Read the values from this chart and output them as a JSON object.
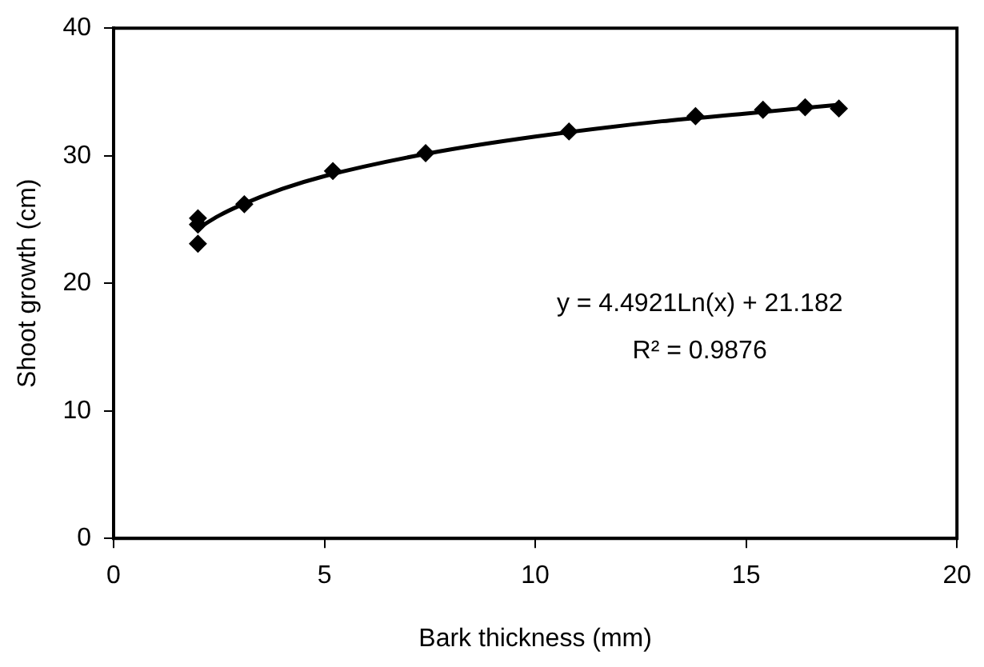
{
  "chart_data": {
    "type": "scatter",
    "xlabel": "Bark thickness (mm)",
    "ylabel": "Shoot growth (cm)",
    "xlim": [
      0,
      20
    ],
    "xticks": [
      0,
      5,
      10,
      15,
      20
    ],
    "ylim": [
      0,
      40
    ],
    "yticks": [
      0,
      10,
      20,
      30,
      40
    ],
    "grid": false,
    "legend": false,
    "marker": "diamond",
    "annotations": [
      "y = 4.4921Ln(x) + 21.182",
      "R² = 0.9876"
    ],
    "series": [
      {
        "color": "#000000",
        "x": [
          2.0,
          2.0,
          2.0,
          3.1,
          5.2,
          7.4,
          10.8,
          13.8,
          15.4,
          16.4,
          17.2
        ],
        "values": [
          25.1,
          24.6,
          23.1,
          26.2,
          28.8,
          30.2,
          31.9,
          33.1,
          33.6,
          33.8,
          33.7
        ]
      },
      {
        "type": "line",
        "color": "#000000",
        "marker": "none",
        "line_style": "solid",
        "x": [
          2,
          2.5,
          3,
          4,
          5,
          7.5,
          10,
          13,
          15,
          17.2
        ],
        "values": [
          24.3,
          25.3,
          26.1,
          27.4,
          28.4,
          30.2,
          31.5,
          32.7,
          33.3,
          34.0
        ]
      }
    ]
  }
}
